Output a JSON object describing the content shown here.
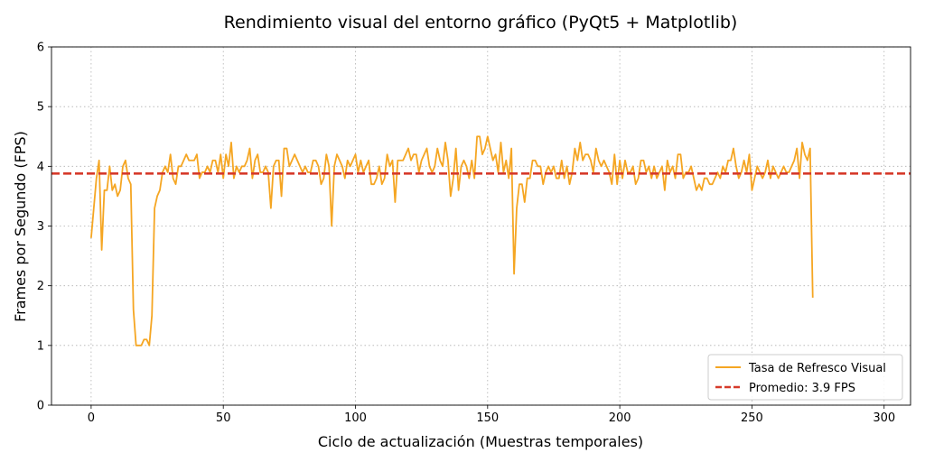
{
  "chart_data": {
    "type": "line",
    "title": "Rendimiento visual del entorno gráfico (PyQt5 + Matplotlib)",
    "xlabel": "Ciclo de actualización (Muestras temporales)",
    "ylabel": "Frames por Segundo (FPS)",
    "xlim": [
      -15,
      310
    ],
    "ylim": [
      0,
      6
    ],
    "xticks": [
      0,
      50,
      100,
      150,
      200,
      250,
      300
    ],
    "yticks": [
      0,
      1,
      2,
      3,
      4,
      5,
      6
    ],
    "grid": true,
    "legend_position": "lower-right",
    "series": [
      {
        "name": "Tasa de Refresco Visual",
        "color": "#f5a623",
        "style": "solid",
        "x_start": 0,
        "x_step": 1,
        "values": [
          2.8,
          3.3,
          3.8,
          4.1,
          2.6,
          3.6,
          3.6,
          4.0,
          3.6,
          3.7,
          3.5,
          3.6,
          4.0,
          4.1,
          3.8,
          3.7,
          1.6,
          1.0,
          1.0,
          1.0,
          1.1,
          1.1,
          1.0,
          1.5,
          3.3,
          3.5,
          3.6,
          3.9,
          4.0,
          3.9,
          4.2,
          3.8,
          3.7,
          4.0,
          4.0,
          4.1,
          4.2,
          4.1,
          4.1,
          4.1,
          4.2,
          3.8,
          3.9,
          3.9,
          4.0,
          3.9,
          4.1,
          4.1,
          3.9,
          4.2,
          3.8,
          4.2,
          4.0,
          4.4,
          3.8,
          4.0,
          3.9,
          4.0,
          4.0,
          4.1,
          4.3,
          3.8,
          4.1,
          4.2,
          3.9,
          3.9,
          4.0,
          3.9,
          3.3,
          4.0,
          4.1,
          4.1,
          3.5,
          4.3,
          4.3,
          4.0,
          4.1,
          4.2,
          4.1,
          4.0,
          3.9,
          4.0,
          3.9,
          3.9,
          4.1,
          4.1,
          4.0,
          3.7,
          3.8,
          4.2,
          4.0,
          3.0,
          4.0,
          4.2,
          4.1,
          4.0,
          3.8,
          4.1,
          4.0,
          4.1,
          4.2,
          3.9,
          4.1,
          3.9,
          4.0,
          4.1,
          3.7,
          3.7,
          3.8,
          4.0,
          3.7,
          3.8,
          4.2,
          4.0,
          4.1,
          3.4,
          4.1,
          4.1,
          4.1,
          4.2,
          4.3,
          4.1,
          4.2,
          4.2,
          3.9,
          4.1,
          4.2,
          4.3,
          4.0,
          3.9,
          4.0,
          4.3,
          4.1,
          4.0,
          4.4,
          4.1,
          3.5,
          3.8,
          4.3,
          3.6,
          4.0,
          4.1,
          4.0,
          3.8,
          4.1,
          3.8,
          4.5,
          4.5,
          4.2,
          4.3,
          4.5,
          4.3,
          4.1,
          4.2,
          3.9,
          4.4,
          3.9,
          4.1,
          3.8,
          4.3,
          2.2,
          3.3,
          3.7,
          3.7,
          3.4,
          3.8,
          3.8,
          4.1,
          4.1,
          4.0,
          4.0,
          3.7,
          3.9,
          4.0,
          3.9,
          4.0,
          3.8,
          3.8,
          4.1,
          3.8,
          4.0,
          3.7,
          3.9,
          4.3,
          4.1,
          4.4,
          4.1,
          4.2,
          4.2,
          4.1,
          3.9,
          4.3,
          4.1,
          4.0,
          4.1,
          4.0,
          3.9,
          3.7,
          4.2,
          3.7,
          4.1,
          3.8,
          4.1,
          3.9,
          3.9,
          4.0,
          3.7,
          3.8,
          4.1,
          4.1,
          3.9,
          4.0,
          3.8,
          4.0,
          3.8,
          3.9,
          4.0,
          3.6,
          4.1,
          3.9,
          4.0,
          3.8,
          4.2,
          4.2,
          3.8,
          3.9,
          3.9,
          4.0,
          3.8,
          3.6,
          3.7,
          3.6,
          3.8,
          3.8,
          3.7,
          3.7,
          3.8,
          3.9,
          3.8,
          4.0,
          3.9,
          4.1,
          4.1,
          4.3,
          4.0,
          3.8,
          3.9,
          4.1,
          3.9,
          4.2,
          3.6,
          3.8,
          4.0,
          3.9,
          3.8,
          3.9,
          4.1,
          3.8,
          4.0,
          3.9,
          3.8,
          3.9,
          4.0,
          3.9,
          3.9,
          4.0,
          4.1,
          4.3,
          3.8,
          4.4,
          4.2,
          4.1,
          4.3,
          1.8
        ]
      },
      {
        "name": "Promedio: 3.9 FPS",
        "color": "#d63a2a",
        "style": "dashed",
        "constant": 3.88
      }
    ]
  }
}
